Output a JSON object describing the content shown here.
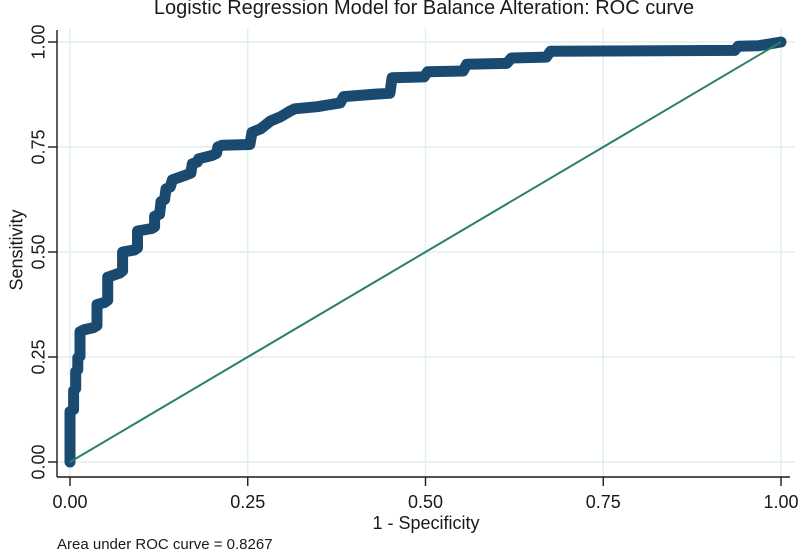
{
  "title": "Logistic Regression Model for Balance Alteration: ROC curve",
  "axes": {
    "x": {
      "label": "1 - Specificity",
      "tick_labels": [
        "0.00",
        "0.25",
        "0.50",
        "0.75",
        "1.00"
      ],
      "tick_values": [
        0,
        0.25,
        0.5,
        0.75,
        1
      ]
    },
    "y": {
      "label": "Sensitivity",
      "tick_labels": [
        "0.00",
        "0.25",
        "0.50",
        "0.75",
        "1.00"
      ],
      "tick_values": [
        0,
        0.25,
        0.5,
        0.75,
        1
      ]
    }
  },
  "annotation": {
    "auc_label": "Area under ROC curve = 0.8267"
  },
  "colors": {
    "roc_curve": "#1b4a71",
    "reference_line": "#2b7e6a",
    "gridline": "#e0edf1",
    "axis": "#1a1a1a",
    "background": "#ffffff"
  },
  "chart_data": {
    "type": "line",
    "title": "Logistic Regression Model for Balance Alteration: ROC curve",
    "xlabel": "1 - Specificity",
    "ylabel": "Sensitivity",
    "xlim": [
      0,
      1
    ],
    "ylim": [
      0,
      1
    ],
    "grid": true,
    "legend": "none",
    "auc": 0.8267,
    "series": [
      {
        "name": "ROC curve",
        "style": "thick-stepped-markers",
        "points": [
          [
            0.0,
            0.0
          ],
          [
            0.0,
            0.12
          ],
          [
            0.005,
            0.125
          ],
          [
            0.005,
            0.17
          ],
          [
            0.008,
            0.175
          ],
          [
            0.008,
            0.215
          ],
          [
            0.011,
            0.22
          ],
          [
            0.011,
            0.248
          ],
          [
            0.014,
            0.252
          ],
          [
            0.014,
            0.31
          ],
          [
            0.02,
            0.315
          ],
          [
            0.033,
            0.32
          ],
          [
            0.038,
            0.325
          ],
          [
            0.038,
            0.375
          ],
          [
            0.049,
            0.38
          ],
          [
            0.053,
            0.385
          ],
          [
            0.053,
            0.44
          ],
          [
            0.07,
            0.45
          ],
          [
            0.074,
            0.455
          ],
          [
            0.074,
            0.5
          ],
          [
            0.091,
            0.505
          ],
          [
            0.095,
            0.51
          ],
          [
            0.095,
            0.55
          ],
          [
            0.115,
            0.556
          ],
          [
            0.119,
            0.56
          ],
          [
            0.119,
            0.585
          ],
          [
            0.126,
            0.59
          ],
          [
            0.128,
            0.62
          ],
          [
            0.133,
            0.625
          ],
          [
            0.135,
            0.65
          ],
          [
            0.141,
            0.655
          ],
          [
            0.144,
            0.672
          ],
          [
            0.163,
            0.683
          ],
          [
            0.17,
            0.688
          ],
          [
            0.172,
            0.71
          ],
          [
            0.179,
            0.714
          ],
          [
            0.181,
            0.722
          ],
          [
            0.2,
            0.73
          ],
          [
            0.206,
            0.735
          ],
          [
            0.208,
            0.75
          ],
          [
            0.214,
            0.754
          ],
          [
            0.253,
            0.756
          ],
          [
            0.256,
            0.785
          ],
          [
            0.268,
            0.793
          ],
          [
            0.282,
            0.812
          ],
          [
            0.296,
            0.822
          ],
          [
            0.31,
            0.836
          ],
          [
            0.316,
            0.841
          ],
          [
            0.348,
            0.846
          ],
          [
            0.362,
            0.85
          ],
          [
            0.38,
            0.855
          ],
          [
            0.385,
            0.87
          ],
          [
            0.43,
            0.876
          ],
          [
            0.45,
            0.878
          ],
          [
            0.453,
            0.915
          ],
          [
            0.498,
            0.917
          ],
          [
            0.503,
            0.929
          ],
          [
            0.553,
            0.931
          ],
          [
            0.558,
            0.947
          ],
          [
            0.614,
            0.949
          ],
          [
            0.621,
            0.962
          ],
          [
            0.67,
            0.964
          ],
          [
            0.676,
            0.978
          ],
          [
            0.935,
            0.98
          ],
          [
            0.94,
            0.99
          ],
          [
            0.968,
            0.991
          ],
          [
            1.0,
            1.0
          ]
        ]
      },
      {
        "name": "reference diagonal",
        "style": "thin-line",
        "points": [
          [
            0,
            0
          ],
          [
            1,
            1
          ]
        ]
      }
    ]
  }
}
